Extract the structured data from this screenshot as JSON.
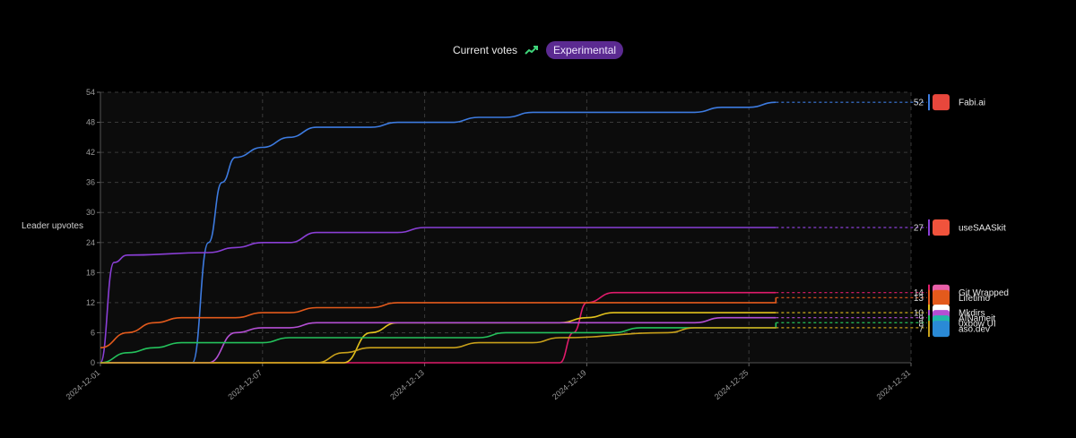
{
  "header": {
    "title": "Current votes",
    "trend_icon": "trending-up-icon",
    "badge": "Experimental"
  },
  "chart_data": {
    "type": "line",
    "title": "Current votes",
    "ylabel": "Leader upvotes",
    "xlabel": "",
    "ylim": [
      0,
      54
    ],
    "yticks": [
      0,
      6,
      12,
      18,
      24,
      30,
      36,
      42,
      48,
      54
    ],
    "xlim": [
      "2024-12-01",
      "2024-12-31"
    ],
    "xticks": [
      "2024-12-01",
      "2024-12-07",
      "2024-12-13",
      "2024-12-19",
      "2024-12-25",
      "2024-12-31"
    ],
    "grid": true,
    "legend": "right",
    "last_date": "2024-12-26",
    "series": [
      {
        "name": "Fabi.ai",
        "color": "#3d7be0",
        "icon": "fabi-logo-icon",
        "icon_color": "#e8473c",
        "final": 52,
        "points": [
          [
            "2024-12-01",
            0
          ],
          [
            "2024-12-04",
            0
          ],
          [
            "2024-12-04.4",
            0
          ],
          [
            "2024-12-05",
            24
          ],
          [
            "2024-12-05.5",
            36
          ],
          [
            "2024-12-06",
            41
          ],
          [
            "2024-12-07",
            43
          ],
          [
            "2024-12-08",
            45
          ],
          [
            "2024-12-09",
            47
          ],
          [
            "2024-12-11",
            47
          ],
          [
            "2024-12-12",
            48
          ],
          [
            "2024-12-14",
            48
          ],
          [
            "2024-12-15",
            49
          ],
          [
            "2024-12-16",
            49
          ],
          [
            "2024-12-17",
            50
          ],
          [
            "2024-12-23",
            50
          ],
          [
            "2024-12-24",
            51
          ],
          [
            "2024-12-25",
            51
          ],
          [
            "2024-12-26",
            52
          ]
        ]
      },
      {
        "name": "useSAASkit",
        "color": "#8a3fd6",
        "icon": "usesaaskit-logo-icon",
        "icon_color": "#f0533c",
        "final": 27,
        "points": [
          [
            "2024-12-01",
            0
          ],
          [
            "2024-12-01.5",
            20
          ],
          [
            "2024-12-02",
            21.5
          ],
          [
            "2024-12-05",
            22
          ],
          [
            "2024-12-06",
            23
          ],
          [
            "2024-12-07",
            24
          ],
          [
            "2024-12-08",
            24
          ],
          [
            "2024-12-09",
            26
          ],
          [
            "2024-12-12",
            26
          ],
          [
            "2024-12-13",
            27
          ],
          [
            "2024-12-26",
            27
          ]
        ]
      },
      {
        "name": "Git Wrapped",
        "color": "#e01b6b",
        "icon": "git-wrapped-logo-icon",
        "icon_color": "#e85fa8",
        "final": 14,
        "points": [
          [
            "2024-12-01",
            0
          ],
          [
            "2024-12-18",
            0
          ],
          [
            "2024-12-18.5",
            6
          ],
          [
            "2024-12-19",
            12
          ],
          [
            "2024-12-20",
            14
          ],
          [
            "2024-12-26",
            14
          ]
        ]
      },
      {
        "name": "Lifetimo",
        "color": "#e35a1c",
        "icon": "lifetimo-logo-icon",
        "icon_color": "#e35a1c",
        "final": 13,
        "points": [
          [
            "2024-12-01",
            3
          ],
          [
            "2024-12-02",
            6
          ],
          [
            "2024-12-03",
            8
          ],
          [
            "2024-12-04",
            9
          ],
          [
            "2024-12-06",
            9
          ],
          [
            "2024-12-07",
            10
          ],
          [
            "2024-12-08",
            10
          ],
          [
            "2024-12-09",
            11
          ],
          [
            "2024-12-11",
            11
          ],
          [
            "2024-12-12",
            12
          ],
          [
            "2024-12-26",
            12
          ],
          [
            "2024-12-26",
            13
          ]
        ]
      },
      {
        "name": "Mkdirs",
        "color": "#e3c21c",
        "icon": "mkdirs-logo-icon",
        "icon_color": "#ffffff",
        "final": 10,
        "points": [
          [
            "2024-12-01",
            0
          ],
          [
            "2024-12-10",
            0
          ],
          [
            "2024-12-11",
            6
          ],
          [
            "2024-12-12",
            8
          ],
          [
            "2024-12-18",
            8
          ],
          [
            "2024-12-19",
            9
          ],
          [
            "2024-12-20",
            10
          ],
          [
            "2024-12-26",
            10
          ]
        ]
      },
      {
        "name": "AINameit",
        "color": "#b44fd4",
        "icon": "ainameit-logo-icon",
        "icon_color": "#b44fd4",
        "final": 9,
        "points": [
          [
            "2024-12-01",
            0
          ],
          [
            "2024-12-05",
            0
          ],
          [
            "2024-12-06",
            6
          ],
          [
            "2024-12-07",
            7
          ],
          [
            "2024-12-08",
            7
          ],
          [
            "2024-12-09",
            8
          ],
          [
            "2024-12-23",
            8
          ],
          [
            "2024-12-24",
            9
          ],
          [
            "2024-12-26",
            9
          ]
        ]
      },
      {
        "name": "0xbow UI",
        "color": "#24c25c",
        "icon": "oxbow-ui-logo-icon",
        "icon_color": "#22b8a8",
        "final": 8,
        "points": [
          [
            "2024-12-01",
            0
          ],
          [
            "2024-12-02",
            2
          ],
          [
            "2024-12-03",
            3
          ],
          [
            "2024-12-04",
            4
          ],
          [
            "2024-12-07",
            4
          ],
          [
            "2024-12-08",
            5
          ],
          [
            "2024-12-15",
            5
          ],
          [
            "2024-12-16",
            6
          ],
          [
            "2024-12-20",
            6
          ],
          [
            "2024-12-21",
            7
          ],
          [
            "2024-12-26",
            7
          ],
          [
            "2024-12-26",
            8
          ]
        ]
      },
      {
        "name": "aso.dev",
        "color": "#c8a01a",
        "icon": "aso-dev-logo-icon",
        "icon_color": "#2a8ad6",
        "final": 7,
        "points": [
          [
            "2024-12-01",
            0
          ],
          [
            "2024-12-09",
            0
          ],
          [
            "2024-12-10",
            2
          ],
          [
            "2024-12-11",
            3
          ],
          [
            "2024-12-14",
            3
          ],
          [
            "2024-12-15",
            4
          ],
          [
            "2024-12-17",
            4
          ],
          [
            "2024-12-18",
            5
          ],
          [
            "2024-12-22",
            6
          ],
          [
            "2024-12-23",
            7
          ],
          [
            "2024-12-26",
            7
          ]
        ]
      }
    ]
  }
}
